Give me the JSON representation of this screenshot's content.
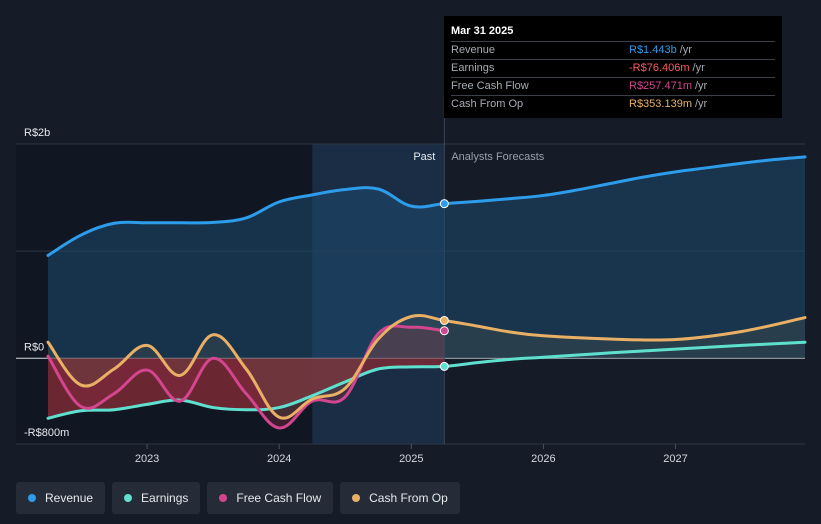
{
  "colors": {
    "revenue": "#2d9cea",
    "earnings": "#5fe0cf",
    "fcf": "#d3468f",
    "cfo": "#e9b065"
  },
  "tooltip": {
    "date": "Mar 31 2025",
    "rows": [
      {
        "label": "Revenue",
        "value": "R$1.443b",
        "unit": "/yr",
        "color": "#2d9cea"
      },
      {
        "label": "Earnings",
        "value": "-R$76.406m",
        "unit": "/yr",
        "color": "#ff5a5f"
      },
      {
        "label": "Free Cash Flow",
        "value": "R$257.471m",
        "unit": "/yr",
        "color": "#d3468f"
      },
      {
        "label": "Cash From Op",
        "value": "R$353.139m",
        "unit": "/yr",
        "color": "#e9b065"
      }
    ]
  },
  "legend": [
    {
      "label": "Revenue",
      "color": "#2d9cea"
    },
    {
      "label": "Earnings",
      "color": "#5fe0cf"
    },
    {
      "label": "Free Cash Flow",
      "color": "#d3468f"
    },
    {
      "label": "Cash From Op",
      "color": "#e9b065"
    }
  ],
  "chart_data": {
    "type": "line",
    "title": "",
    "xlabel": "",
    "ylabel": "",
    "y_tick_labels": [
      "R$2b",
      "R$0",
      "-R$800m"
    ],
    "x_tick_labels": [
      "2023",
      "2024",
      "2025",
      "2026",
      "2027"
    ],
    "xlim": [
      2022.25,
      2027.98
    ],
    "ylim": [
      -800,
      2000
    ],
    "grid": true,
    "legend_position": "bottom-left",
    "past_label": "Past",
    "forecast_label": "Analysts Forecasts",
    "divider_x": 2025.25,
    "forecast_start_x": 2024.25,
    "series": [
      {
        "name": "Revenue",
        "key": "revenue",
        "x": [
          2022.25,
          2022.5,
          2022.75,
          2023.0,
          2023.25,
          2023.5,
          2023.75,
          2024.0,
          2024.25,
          2024.5,
          2024.75,
          2025.0,
          2025.25,
          2025.5,
          2025.75,
          2026.0,
          2026.25,
          2026.5,
          2026.75,
          2027.0,
          2027.25,
          2027.5,
          2027.75,
          2027.98
        ],
        "y": [
          960,
          1150,
          1260,
          1265,
          1265,
          1268,
          1310,
          1460,
          1525,
          1575,
          1580,
          1420,
          1443,
          1465,
          1490,
          1520,
          1570,
          1630,
          1690,
          1740,
          1780,
          1820,
          1855,
          1880
        ]
      },
      {
        "name": "Earnings",
        "key": "earnings",
        "x": [
          2022.25,
          2022.5,
          2022.75,
          2023.0,
          2023.25,
          2023.5,
          2023.75,
          2024.0,
          2024.25,
          2024.5,
          2024.75,
          2025.0,
          2025.25,
          2025.5,
          2025.75,
          2026.0,
          2026.5,
          2027.0,
          2027.5,
          2027.98
        ],
        "y": [
          -560,
          -490,
          -480,
          -430,
          -390,
          -460,
          -480,
          -460,
          -350,
          -220,
          -100,
          -80,
          -76,
          -40,
          -10,
          10,
          50,
          85,
          120,
          150
        ]
      },
      {
        "name": "Free Cash Flow",
        "key": "fcf",
        "x": [
          2022.25,
          2022.5,
          2022.75,
          2023.0,
          2023.25,
          2023.5,
          2023.75,
          2024.0,
          2024.25,
          2024.5,
          2024.75,
          2025.0,
          2025.25
        ],
        "y": [
          20,
          -450,
          -330,
          -110,
          -400,
          0,
          -330,
          -650,
          -400,
          -360,
          230,
          290,
          257
        ]
      },
      {
        "name": "Cash From Op",
        "key": "cfo",
        "x": [
          2022.25,
          2022.5,
          2022.75,
          2023.0,
          2023.25,
          2023.5,
          2023.75,
          2024.0,
          2024.25,
          2024.5,
          2024.75,
          2025.0,
          2025.25,
          2025.5,
          2025.75,
          2026.0,
          2026.5,
          2027.0,
          2027.5,
          2027.98
        ],
        "y": [
          150,
          -250,
          -100,
          120,
          -160,
          220,
          -100,
          -550,
          -380,
          -280,
          180,
          390,
          353,
          300,
          245,
          210,
          180,
          175,
          250,
          380
        ]
      }
    ]
  }
}
